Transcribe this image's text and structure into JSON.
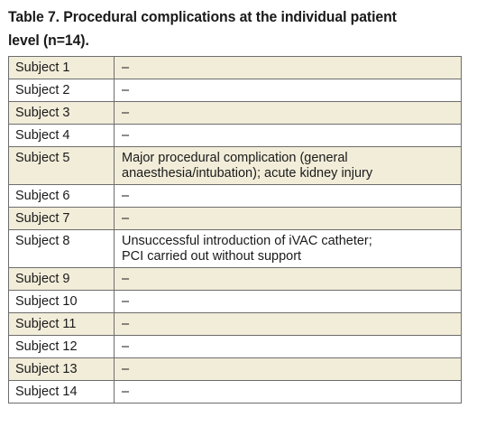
{
  "title": "Table 7. Procedural complications at the individual patient level (n=14).",
  "rows": [
    {
      "subject": "Subject 1",
      "value": "–"
    },
    {
      "subject": "Subject 2",
      "value": "–"
    },
    {
      "subject": "Subject 3",
      "value": "–"
    },
    {
      "subject": "Subject 4",
      "value": "–"
    },
    {
      "subject": "Subject 5",
      "value": "Major procedural complication (general\nanaesthesia/intubation); acute kidney injury"
    },
    {
      "subject": "Subject 6",
      "value": "–"
    },
    {
      "subject": "Subject 7",
      "value": "–"
    },
    {
      "subject": "Subject 8",
      "value": "Unsuccessful introduction of iVAC catheter;\nPCI carried out without support"
    },
    {
      "subject": "Subject 9",
      "value": "–"
    },
    {
      "subject": "Subject 10",
      "value": "–"
    },
    {
      "subject": "Subject 11",
      "value": "–"
    },
    {
      "subject": "Subject 12",
      "value": "–"
    },
    {
      "subject": "Subject 13",
      "value": "–"
    },
    {
      "subject": "Subject 14",
      "value": "–"
    }
  ],
  "colors": {
    "shaded_row": "#f2edd9",
    "border": "#6d6d6d"
  }
}
